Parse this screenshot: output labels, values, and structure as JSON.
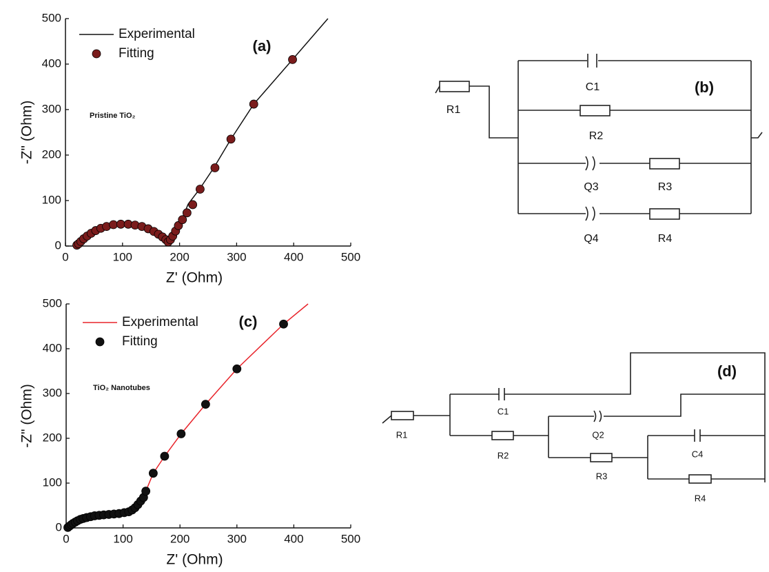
{
  "chart_data": [
    {
      "type": "line",
      "panel_label": "(a)",
      "annotation": "Pristine TiO₂",
      "xlabel": "Z' (Ohm)",
      "ylabel": "-Z\" (Ohm)",
      "xlim": [
        0,
        500
      ],
      "ylim": [
        0,
        500
      ],
      "xticks": [
        0,
        100,
        200,
        300,
        400,
        500
      ],
      "yticks": [
        0,
        100,
        200,
        300,
        400,
        500
      ],
      "series": [
        {
          "name": "Experimental",
          "type": "line",
          "color": "#111111",
          "x": [
            20,
            25,
            30,
            40,
            50,
            60,
            70,
            80,
            90,
            100,
            110,
            120,
            130,
            140,
            150,
            160,
            170,
            176,
            180,
            183,
            188,
            195,
            205,
            215,
            235,
            260,
            290,
            330,
            398,
            460
          ],
          "values": [
            2,
            8,
            16,
            26,
            33,
            39,
            43,
            46,
            48,
            48,
            48,
            46,
            44,
            40,
            34,
            27,
            19,
            12,
            8,
            10,
            22,
            40,
            62,
            92,
            125,
            172,
            235,
            312,
            410,
            500
          ]
        },
        {
          "name": "Fitting",
          "type": "scatter",
          "color": "#7a1c1c",
          "x": [
            20,
            23,
            27,
            32,
            38,
            45,
            53,
            62,
            72,
            84,
            97,
            110,
            122,
            134,
            145,
            155,
            163,
            170,
            176,
            180,
            184,
            188,
            193,
            198,
            205,
            213,
            223,
            236,
            262,
            290,
            330,
            398
          ],
          "values": [
            2,
            5,
            10,
            16,
            22,
            28,
            34,
            39,
            43,
            47,
            48,
            48,
            46,
            43,
            38,
            32,
            26,
            20,
            14,
            9,
            14,
            22,
            33,
            45,
            58,
            73,
            91,
            125,
            172,
            235,
            312,
            410
          ]
        }
      ]
    },
    {
      "type": "line",
      "panel_label": "(c)",
      "annotation": "TiO₂ Nanotubes",
      "xlabel": "Z' (Ohm)",
      "ylabel": "-Z\" (Ohm)",
      "xlim": [
        0,
        500
      ],
      "ylim": [
        0,
        500
      ],
      "xticks": [
        0,
        100,
        200,
        300,
        400,
        500
      ],
      "yticks": [
        0,
        100,
        200,
        300,
        400,
        500
      ],
      "series": [
        {
          "name": "Experimental",
          "type": "line",
          "color": "#e8232a",
          "x": [
            3,
            10,
            20,
            30,
            40,
            60,
            80,
            100,
            110,
            118,
            124,
            130,
            136,
            140,
            153,
            173,
            202,
            245,
            300,
            382,
            425
          ],
          "values": [
            0,
            8,
            15,
            20,
            24,
            28,
            31,
            34,
            37,
            42,
            50,
            60,
            70,
            82,
            122,
            160,
            210,
            276,
            355,
            455,
            500
          ]
        },
        {
          "name": "Fitting",
          "type": "scatter",
          "color": "#111111",
          "x": [
            3,
            6,
            9,
            12,
            16,
            20,
            25,
            30,
            36,
            43,
            50,
            58,
            66,
            75,
            84,
            93,
            102,
            110,
            116,
            121,
            126,
            131,
            136,
            140,
            153,
            173,
            202,
            245,
            300,
            382
          ],
          "values": [
            1,
            4,
            7,
            10,
            13,
            16,
            19,
            21,
            23,
            25,
            27,
            28,
            29,
            30,
            31,
            32,
            34,
            36,
            40,
            45,
            52,
            60,
            68,
            82,
            122,
            160,
            210,
            276,
            355,
            455
          ]
        }
      ]
    }
  ],
  "circuits": [
    {
      "label": "(b)",
      "components": [
        "R1",
        "C1",
        "R2",
        "Q3",
        "R3",
        "Q4",
        "R4"
      ]
    },
    {
      "label": "(d)",
      "components": [
        "R1",
        "C1",
        "R2",
        "Q2",
        "R3",
        "C4",
        "R4"
      ]
    }
  ]
}
